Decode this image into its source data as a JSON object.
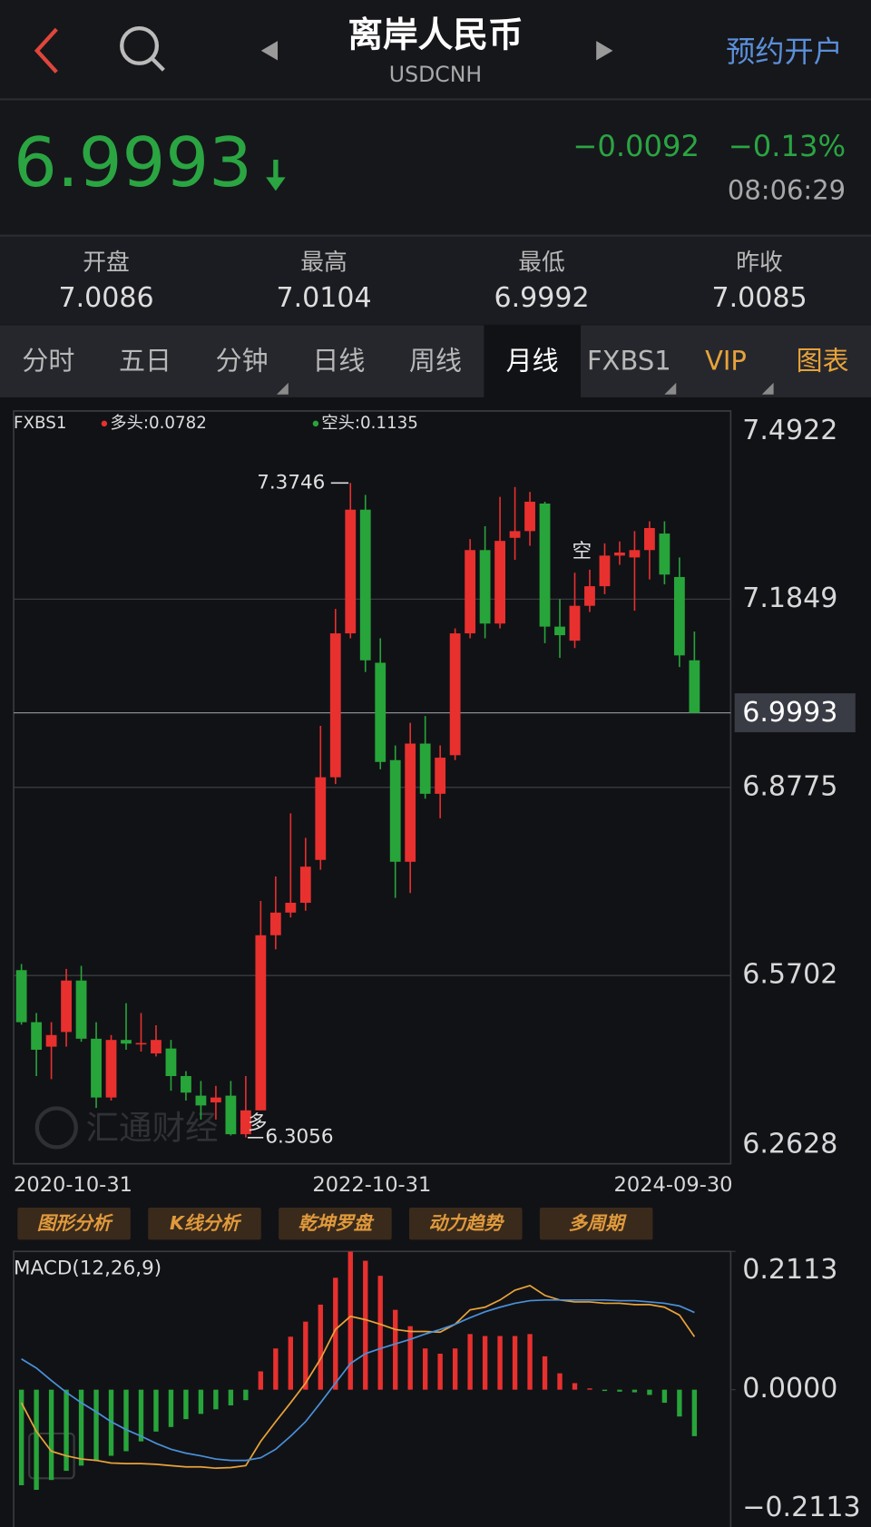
{
  "header": {
    "title": "离岸人民币",
    "subtitle": "USDCNH",
    "action": "预约开户"
  },
  "quote": {
    "price": "6.9993",
    "change": "−0.0092",
    "change_pct": "−0.13%",
    "time": "08:06:29"
  },
  "stats": [
    {
      "label": "开盘",
      "value": "7.0086"
    },
    {
      "label": "最高",
      "value": "7.0104"
    },
    {
      "label": "最低",
      "value": "6.9992"
    },
    {
      "label": "昨收",
      "value": "7.0085"
    }
  ],
  "tabs": [
    {
      "label": "分时"
    },
    {
      "label": "五日"
    },
    {
      "label": "分钟"
    },
    {
      "label": "日线"
    },
    {
      "label": "周线"
    },
    {
      "label": "月线"
    },
    {
      "label": "FXBS1"
    },
    {
      "label": "VIP",
      "color": "#e8a33a"
    },
    {
      "label": "图表",
      "color": "#e8a33a"
    }
  ],
  "active_tab": 5,
  "tools": [
    "图形分析",
    "K线分析",
    "乾坤罗盘",
    "动力趋势",
    "多周期"
  ],
  "watermark": "汇通财经",
  "chart_data": [
    {
      "type": "candlestick",
      "indicator": {
        "name": "FXBS1",
        "items": [
          {
            "text": "多头:0.0782",
            "color": "#e8302e"
          },
          {
            "text": "空头:0.1135",
            "color": "#27a53a"
          }
        ]
      },
      "categories": [
        "2020-10-31",
        null,
        null,
        null,
        null,
        null,
        null,
        null,
        null,
        null,
        null,
        null,
        null,
        null,
        null,
        null,
        null,
        null,
        null,
        null,
        null,
        null,
        "2022-10-31",
        null,
        null,
        null,
        null,
        null,
        null,
        null,
        null,
        null,
        null,
        null,
        null,
        null,
        null,
        null,
        null,
        null,
        null,
        null,
        null,
        null,
        null,
        "2024-09-30"
      ],
      "open": [
        6.579,
        6.494,
        6.454,
        6.478,
        6.562,
        6.467,
        6.371,
        6.465,
        6.459,
        6.443,
        6.451,
        6.406,
        6.374,
        6.363,
        6.374,
        6.311,
        6.35,
        6.636,
        6.673,
        6.689,
        6.759,
        6.894,
        7.129,
        7.331,
        7.081,
        6.922,
        6.756,
        6.949,
        6.867,
        6.93,
        7.129,
        7.265,
        7.145,
        7.285,
        7.296,
        7.341,
        7.14,
        7.117,
        7.174,
        7.206,
        7.256,
        7.253,
        7.265,
        7.292,
        7.221,
        7.085
      ],
      "high": [
        6.589,
        6.509,
        6.494,
        6.581,
        6.586,
        6.494,
        6.473,
        6.525,
        6.509,
        6.489,
        6.465,
        6.414,
        6.398,
        6.39,
        6.398,
        6.406,
        6.692,
        6.732,
        6.835,
        6.795,
        6.978,
        7.169,
        7.3746,
        7.355,
        7.121,
        6.946,
        6.983,
        6.994,
        6.946,
        7.137,
        7.283,
        7.304,
        7.352,
        7.368,
        7.36,
        7.344,
        7.185,
        7.228,
        7.233,
        7.276,
        7.279,
        7.296,
        7.312,
        7.312,
        7.253,
        7.132
      ],
      "low": [
        6.49,
        6.406,
        6.401,
        6.454,
        6.462,
        6.354,
        6.366,
        6.449,
        6.446,
        6.438,
        6.382,
        6.366,
        6.335,
        6.335,
        6.309,
        6.3056,
        6.35,
        6.613,
        6.665,
        6.676,
        6.743,
        6.883,
        7.121,
        7.066,
        6.907,
        6.697,
        6.705,
        6.859,
        6.827,
        6.922,
        7.121,
        7.121,
        7.137,
        7.249,
        7.272,
        7.113,
        7.089,
        7.105,
        7.164,
        7.193,
        7.241,
        7.166,
        7.217,
        7.209,
        7.074,
        6.9993
      ],
      "close": [
        6.494,
        6.449,
        6.473,
        6.562,
        6.467,
        6.371,
        6.465,
        6.459,
        6.46,
        6.465,
        6.406,
        6.379,
        6.358,
        6.371,
        6.311,
        6.35,
        6.636,
        6.673,
        6.689,
        6.748,
        6.894,
        7.129,
        7.331,
        7.085,
        6.919,
        6.756,
        6.949,
        6.867,
        6.926,
        7.129,
        7.265,
        7.145,
        7.28,
        7.296,
        7.344,
        7.14,
        7.126,
        7.174,
        7.206,
        7.256,
        7.261,
        7.265,
        7.301,
        7.225,
        7.093,
        6.9993
      ],
      "up_color": "#e8302e",
      "down_color": "#27a53a",
      "ylim": [
        6.2628,
        7.4922
      ],
      "yticks": [
        7.4922,
        7.1849,
        6.8775,
        6.5702,
        6.2628
      ],
      "grid": true,
      "last_value": 6.9993,
      "peak_label": "7.3746",
      "trough_label": "6.3056",
      "signals": [
        {
          "text": "多",
          "index": 15
        },
        {
          "text": "空",
          "index": 38
        }
      ]
    },
    {
      "type": "macd",
      "title": "MACD(12,26,9)",
      "bars": {
        "values": [
          -0.146,
          -0.153,
          -0.138,
          -0.124,
          -0.116,
          -0.108,
          -0.101,
          -0.094,
          -0.079,
          -0.064,
          -0.057,
          -0.045,
          -0.037,
          -0.03,
          -0.024,
          -0.016,
          0.028,
          0.063,
          0.081,
          0.104,
          0.13,
          0.171,
          0.211,
          0.197,
          0.174,
          0.122,
          0.097,
          0.063,
          0.055,
          0.063,
          0.085,
          0.082,
          0.082,
          0.082,
          0.085,
          0.051,
          0.025,
          0.01,
          0.002,
          -0.002,
          -0.003,
          -0.004,
          -0.008,
          -0.02,
          -0.041,
          -0.071
        ],
        "up_color": "#e8302e",
        "down_color": "#27a53a"
      },
      "lines": [
        {
          "color": "#e8a33a",
          "values": [
            -0.02,
            -0.064,
            -0.094,
            -0.101,
            -0.106,
            -0.108,
            -0.112,
            -0.113,
            -0.113,
            -0.114,
            -0.116,
            -0.118,
            -0.118,
            -0.12,
            -0.119,
            -0.116,
            -0.079,
            -0.049,
            -0.02,
            0.01,
            0.047,
            0.092,
            0.112,
            0.107,
            0.1,
            0.092,
            0.089,
            0.089,
            0.088,
            0.1,
            0.122,
            0.126,
            0.137,
            0.152,
            0.159,
            0.144,
            0.137,
            0.134,
            0.134,
            0.132,
            0.132,
            0.13,
            0.13,
            0.126,
            0.114,
            0.081
          ]
        },
        {
          "color": "#4a90d9",
          "values": [
            0.047,
            0.033,
            0.014,
            -0.004,
            -0.02,
            -0.034,
            -0.049,
            -0.061,
            -0.071,
            -0.082,
            -0.091,
            -0.097,
            -0.101,
            -0.106,
            -0.108,
            -0.108,
            -0.104,
            -0.091,
            -0.071,
            -0.049,
            -0.02,
            0.01,
            0.04,
            0.055,
            0.063,
            0.07,
            0.077,
            0.085,
            0.092,
            0.1,
            0.11,
            0.119,
            0.126,
            0.132,
            0.136,
            0.137,
            0.137,
            0.137,
            0.137,
            0.137,
            0.136,
            0.136,
            0.134,
            0.132,
            0.128,
            0.118
          ]
        }
      ],
      "ylim": [
        -0.2113,
        0.2113
      ],
      "yticks": [
        0.2113,
        {
          "value": 0,
          "label": "0.0000"
        },
        {
          "value": -0.2113,
          "label": "−0.2113"
        }
      ]
    }
  ]
}
